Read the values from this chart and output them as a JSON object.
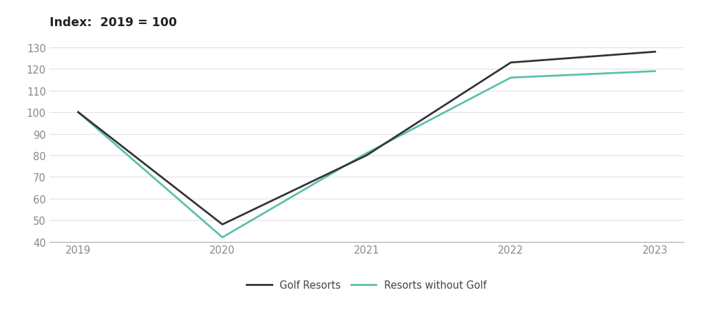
{
  "years": [
    2019,
    2020,
    2021,
    2022,
    2023
  ],
  "golf_resorts": [
    100,
    48,
    80,
    123,
    128
  ],
  "resorts_without_golf": [
    100,
    42,
    81,
    116,
    119
  ],
  "golf_color": "#333333",
  "no_golf_color": "#5bbfad",
  "title": "Index:  2019 = 100",
  "ylim": [
    40,
    135
  ],
  "yticks": [
    40,
    50,
    60,
    70,
    80,
    90,
    100,
    110,
    120,
    130
  ],
  "legend_golf": "Golf Resorts",
  "legend_no_golf": "Resorts without Golf",
  "background_color": "#ffffff",
  "grid_color": "#e0e0e0",
  "line_width": 2.0,
  "tick_label_color": "#888888",
  "tick_label_size": 10.5
}
